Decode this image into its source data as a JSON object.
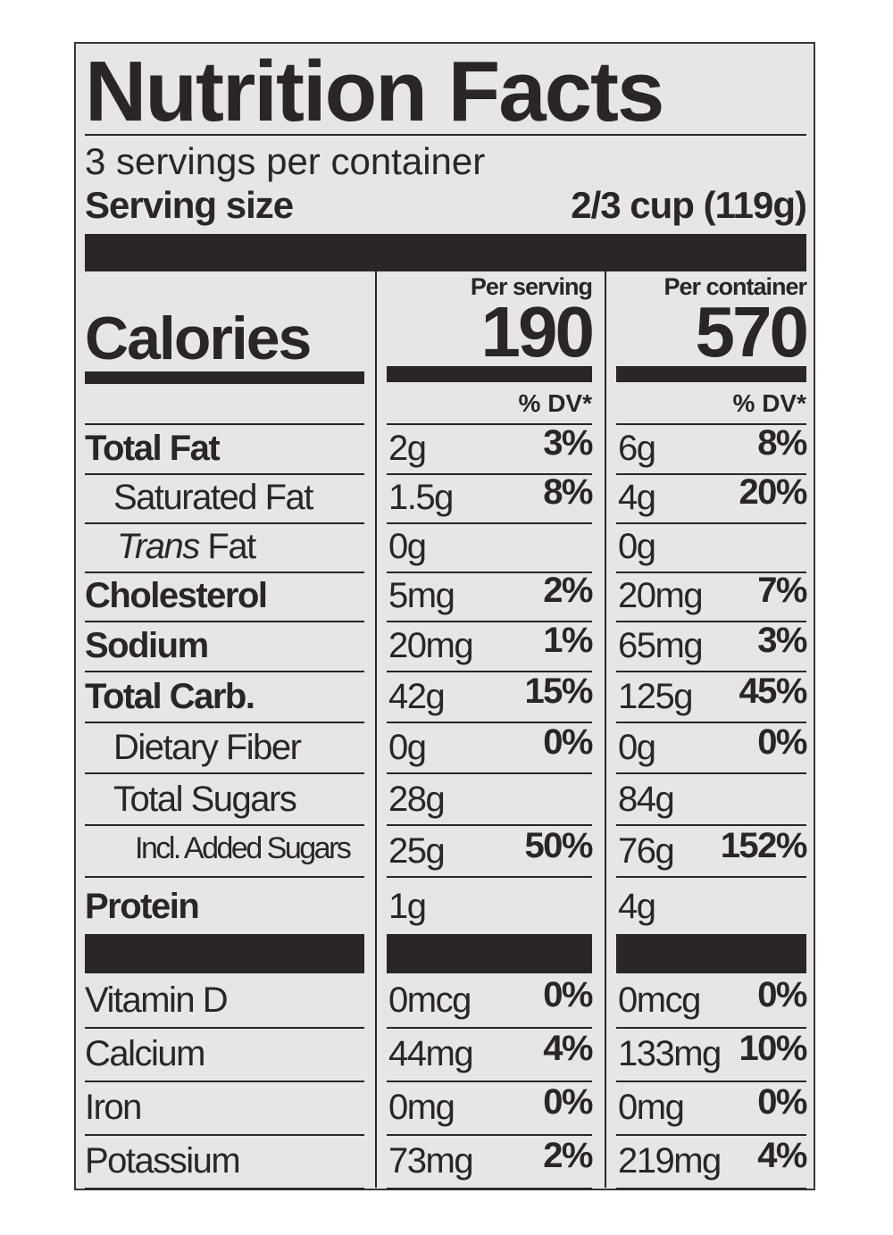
{
  "title": "Nutrition Facts",
  "servings": "3 servings per container",
  "serving_size_label": "Serving size",
  "serving_size": "2/3 cup (119g)",
  "calories_label": "Calories",
  "columns": [
    {
      "heading": "Per serving",
      "calories": "190",
      "dv_heading": "% DV*"
    },
    {
      "heading": "Per container",
      "calories": "570",
      "dv_heading": "% DV*"
    }
  ],
  "nutrients": [
    {
      "name": "Total Fat",
      "serving_amount": "2g",
      "serving_dv": "3%",
      "container_amount": "6g",
      "container_dv": "8%"
    },
    {
      "name": "Saturated Fat",
      "serving_amount": "1.5g",
      "serving_dv": "8%",
      "container_amount": "4g",
      "container_dv": "20%"
    },
    {
      "prefix": "Trans",
      "name": "Fat",
      "serving_amount": "0g",
      "container_amount": "0g"
    },
    {
      "name": "Cholesterol",
      "serving_amount": "5mg",
      "serving_dv": "2%",
      "container_amount": "20mg",
      "container_dv": "7%"
    },
    {
      "name": "Sodium",
      "serving_amount": "20mg",
      "serving_dv": "1%",
      "container_amount": "65mg",
      "container_dv": "3%"
    },
    {
      "name": "Total Carb.",
      "serving_amount": "42g",
      "serving_dv": "15%",
      "container_amount": "125g",
      "container_dv": "45%"
    },
    {
      "name": "Dietary Fiber",
      "serving_amount": "0g",
      "serving_dv": "0%",
      "container_amount": "0g",
      "container_dv": "0%"
    },
    {
      "name": "Total Sugars",
      "serving_amount": "28g",
      "container_amount": "84g"
    },
    {
      "name": "Incl. Added Sugars",
      "serving_amount": "25g",
      "serving_dv": "50%",
      "container_amount": "76g",
      "container_dv": "152%"
    },
    {
      "name": "Protein",
      "serving_amount": "1g",
      "container_amount": "4g"
    }
  ],
  "vitamins": [
    {
      "name": "Vitamin D",
      "serving_amount": "0mcg",
      "serving_dv": "0%",
      "container_amount": "0mcg",
      "container_dv": "0%"
    },
    {
      "name": "Calcium",
      "serving_amount": "44mg",
      "serving_dv": "4%",
      "container_amount": "133mg",
      "container_dv": "10%"
    },
    {
      "name": "Iron",
      "serving_amount": "0mg",
      "serving_dv": "0%",
      "container_amount": "0mg",
      "container_dv": "0%"
    },
    {
      "name": "Potassium",
      "serving_amount": "73mg",
      "serving_dv": "2%",
      "container_amount": "219mg",
      "container_dv": "4%"
    }
  ]
}
